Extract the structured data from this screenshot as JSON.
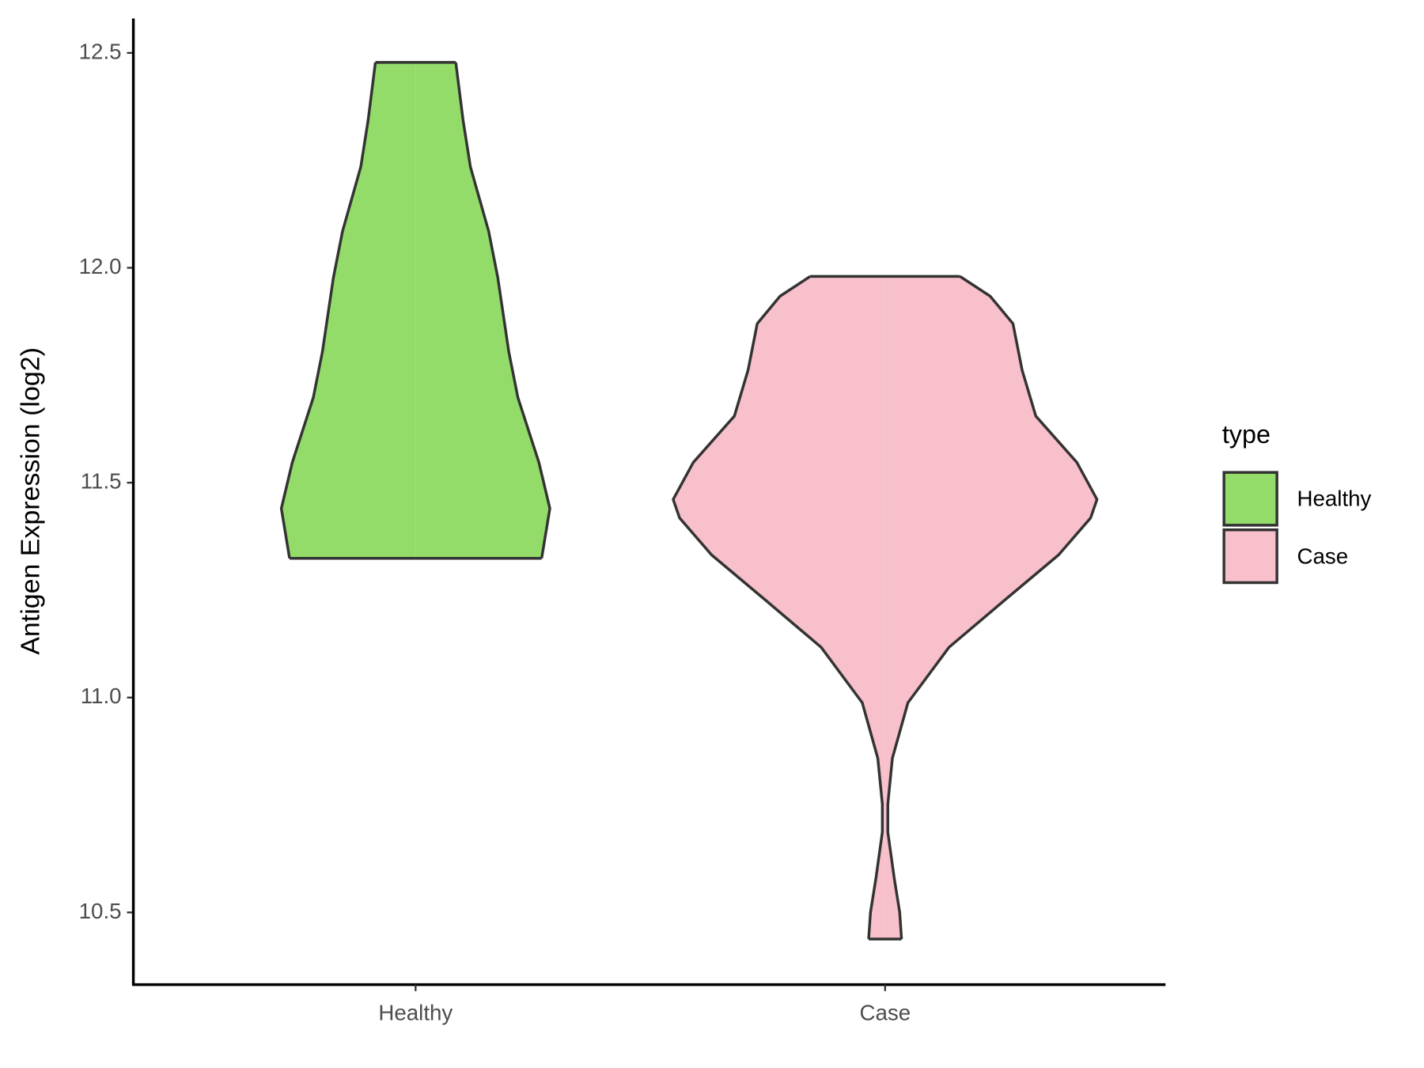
{
  "chart_data": {
    "type": "violin",
    "y_label": "Antigen Expression (log2)",
    "categories": [
      "Healthy",
      "Case"
    ],
    "series": [
      {
        "name": "Healthy",
        "color": "#93dc6a",
        "y": [
          11.324,
          11.44,
          11.547,
          11.698,
          11.805,
          11.977,
          12.085,
          12.235,
          12.343,
          12.478
        ],
        "density": [
          1.38,
          1.47,
          1.35,
          1.12,
          1.02,
          0.9,
          0.8,
          0.6,
          0.52,
          0.44
        ]
      },
      {
        "name": "Case",
        "color": "#f7c0cb",
        "y": [
          10.438,
          10.5,
          10.58,
          10.687,
          10.752,
          10.859,
          10.988,
          11.117,
          11.225,
          11.332,
          11.418,
          11.461,
          11.547,
          11.655,
          11.762,
          11.87,
          11.934,
          11.98
        ],
        "density": [
          0.18,
          0.16,
          0.1,
          0.03,
          0.03,
          0.08,
          0.25,
          0.7,
          1.3,
          1.9,
          2.25,
          2.32,
          2.1,
          1.65,
          1.5,
          1.4,
          1.15,
          0.82
        ]
      }
    ],
    "ylim": [
      10.332,
      12.58
    ],
    "yticks": [
      10.5,
      {
        "value": 11,
        "label": "11.0"
      },
      11.5,
      {
        "value": 12,
        "label": "12.0"
      },
      12.5
    ],
    "legend_title": "type",
    "legend_position": "right"
  }
}
